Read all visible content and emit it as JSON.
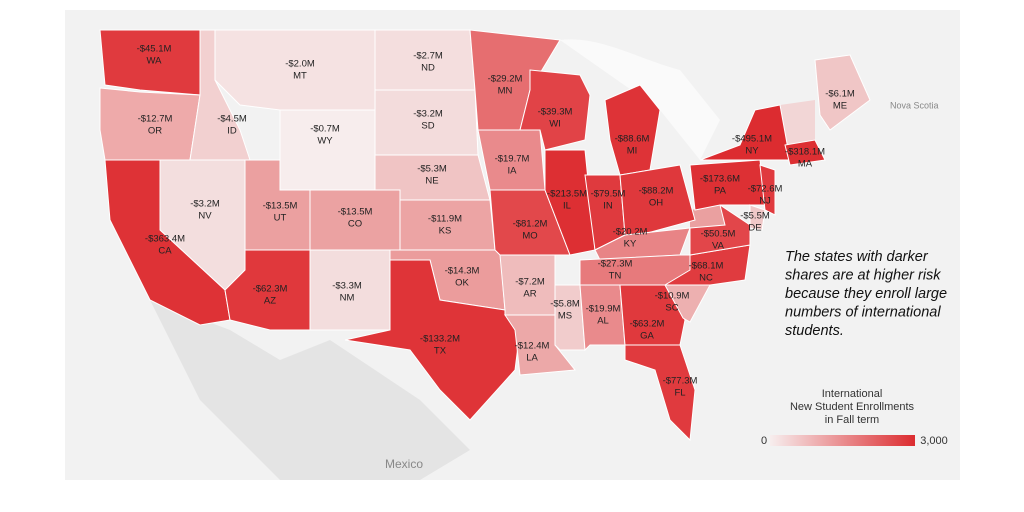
{
  "states": [
    {
      "label": "-$45.1M",
      "abbr": "WA",
      "color": "#e03a3e"
    },
    {
      "label": "-$12.7M",
      "abbr": "OR",
      "color": "#eeaaaa"
    },
    {
      "label": "-$4.5M",
      "abbr": "ID",
      "color": "#f2d0d0"
    },
    {
      "label": "-$2.0M",
      "abbr": "MT",
      "color": "#f5e2e2"
    },
    {
      "label": "-$0.7M",
      "abbr": "WY",
      "color": "#f7eded"
    },
    {
      "label": "-$3.2M",
      "abbr": "NV",
      "color": "#f3dede"
    },
    {
      "label": "-$363.4M",
      "abbr": "CA",
      "color": "#de3236"
    },
    {
      "label": "-$13.5M",
      "abbr": "UT",
      "color": "#eba0a0"
    },
    {
      "label": "-$13.5M",
      "abbr": "CO",
      "color": "#eba2a2"
    },
    {
      "label": "-$62.3M",
      "abbr": "AZ",
      "color": "#e0383c"
    },
    {
      "label": "-$3.3M",
      "abbr": "NM",
      "color": "#f3dddd"
    },
    {
      "label": "-$2.7M",
      "abbr": "ND",
      "color": "#f4dede"
    },
    {
      "label": "-$3.2M",
      "abbr": "SD",
      "color": "#f3dcdc"
    },
    {
      "label": "-$5.3M",
      "abbr": "NE",
      "color": "#f0c4c4"
    },
    {
      "label": "-$11.9M",
      "abbr": "KS",
      "color": "#eca4a4"
    },
    {
      "label": "-$14.3M",
      "abbr": "OK",
      "color": "#eb9c9c"
    },
    {
      "label": "-$133.2M",
      "abbr": "TX",
      "color": "#df3438"
    },
    {
      "label": "-$29.2M",
      "abbr": "MN",
      "color": "#e66e70"
    },
    {
      "label": "-$19.7M",
      "abbr": "IA",
      "color": "#e98a8c"
    },
    {
      "label": "-$81.2M",
      "abbr": "MO",
      "color": "#e2484b"
    },
    {
      "label": "-$7.2M",
      "abbr": "AR",
      "color": "#efbcbc"
    },
    {
      "label": "-$12.4M",
      "abbr": "LA",
      "color": "#eca8a8"
    },
    {
      "label": "-$39.3M",
      "abbr": "WI",
      "color": "#e14347"
    },
    {
      "label": "-$213.5M",
      "abbr": "IL",
      "color": "#dd2f33"
    },
    {
      "label": "-$5.8M",
      "abbr": "MS",
      "color": "#f1cccc"
    },
    {
      "label": "-$19.9M",
      "abbr": "AL",
      "color": "#e98a8c"
    },
    {
      "label": "-$88.6M",
      "abbr": "MI",
      "color": "#de3337"
    },
    {
      "label": "-$79.5M",
      "abbr": "IN",
      "color": "#df3a3e"
    },
    {
      "label": "-$88.2M",
      "abbr": "OH",
      "color": "#df383c"
    },
    {
      "label": "-$20.2M",
      "abbr": "KY",
      "color": "#e88486"
    },
    {
      "label": "-$27.3M",
      "abbr": "TN",
      "color": "#e77a7c"
    },
    {
      "label": "-$63.2M",
      "abbr": "GA",
      "color": "#e0393d"
    },
    {
      "label": "-$77.3M",
      "abbr": "FL",
      "color": "#e03a3e"
    },
    {
      "label": "-$10.9M",
      "abbr": "SC",
      "color": "#edb0b0"
    },
    {
      "label": "-$68.1M",
      "abbr": "NC",
      "color": "#e03b3f"
    },
    {
      "label": "-$50.5M",
      "abbr": "VA",
      "color": "#e2464a"
    },
    {
      "label": "-$173.6M",
      "abbr": "PA",
      "color": "#dd3034"
    },
    {
      "label": "-$495.1M",
      "abbr": "NY",
      "color": "#dc2c30"
    },
    {
      "label": "-$72.6M",
      "abbr": "NJ",
      "color": "#e03a3e"
    },
    {
      "label": "-$5.5M",
      "abbr": "DE",
      "color": "#f0c8c8"
    },
    {
      "label": "-$318.1M",
      "abbr": "MA",
      "color": "#dd2f33"
    },
    {
      "label": "-$6.1M",
      "abbr": "ME",
      "color": "#f0c6c6"
    }
  ],
  "annotation": [
    "The states with darker",
    "shares are at higher risk",
    "because they enroll large",
    "numbers of international",
    "students."
  ],
  "legend": {
    "title": [
      "International",
      "New Student Enrollments",
      "in Fall term"
    ],
    "min": "0",
    "max": "3,000",
    "low_color": "#f7eeee",
    "high_color": "#dc2c30"
  },
  "places": [
    "Mexico",
    "Nova Scotia"
  ]
}
